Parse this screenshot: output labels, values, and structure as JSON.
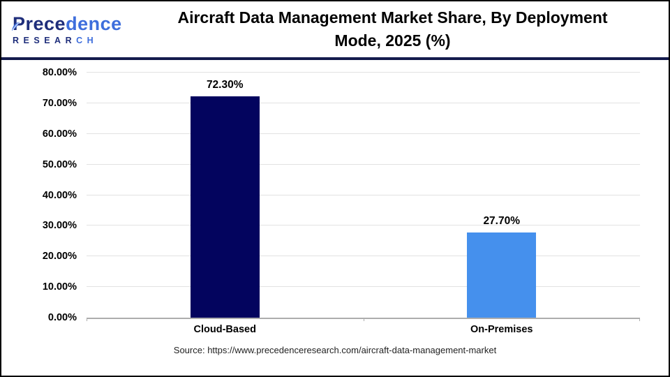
{
  "header": {
    "logo": {
      "brand_dark": "Prece",
      "brand_light": "dence",
      "research_dark": "RESEAR",
      "research_light": "CH"
    },
    "title_lines": [
      "Aircraft Data Management Market Share, By Deployment",
      "Mode, 2025 (%)"
    ]
  },
  "chart_data": {
    "type": "bar",
    "title": "Aircraft Data Management Market Share, By Deployment Mode, 2025 (%)",
    "categories": [
      "Cloud-Based",
      "On-Premises"
    ],
    "values": [
      72.3,
      27.7
    ],
    "value_labels": [
      "72.30%",
      "27.70%"
    ],
    "bar_colors": [
      "#03045E",
      "#4590ED"
    ],
    "xlabel": "",
    "ylabel": "",
    "ylim": [
      0,
      80
    ],
    "yticks": [
      0,
      10,
      20,
      30,
      40,
      50,
      60,
      70,
      80
    ],
    "ytick_labels": [
      "0.00%",
      "10.00%",
      "20.00%",
      "30.00%",
      "40.00%",
      "50.00%",
      "60.00%",
      "70.00%",
      "80.00%"
    ],
    "grid": true,
    "legend": false
  },
  "footer": {
    "source": "Source: https://www.precedenceresearch.com/aircraft-data-management-market"
  },
  "colors": {
    "bar_cloud_based": "#03045E",
    "bar_on_premises": "#4590ED",
    "header_divider": "#141B4D",
    "gridline": "#E2E2E2",
    "axis_line": "#ADADAD",
    "logo_dark_blue": "#1F2E7B",
    "logo_light_blue": "#3E6EDC"
  }
}
